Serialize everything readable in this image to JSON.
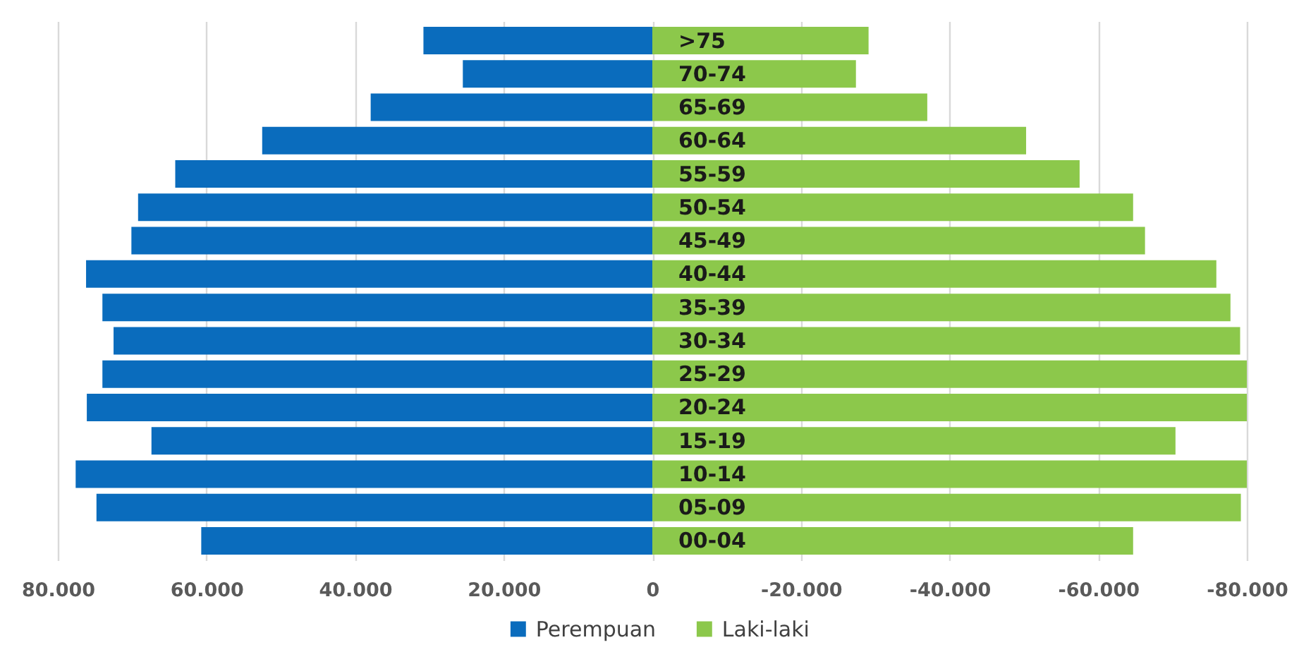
{
  "chart_data": {
    "type": "bar",
    "orientation": "horizontal",
    "stacked": true,
    "categories": [
      ">75",
      "70-74",
      "65-69",
      "60-64",
      "55-59",
      "50-54",
      "45-49",
      "40-44",
      "35-39",
      "30-34",
      "25-29",
      "20-24",
      "15-19",
      "10-14",
      "05-09",
      "00-04"
    ],
    "series": [
      {
        "name": "Perempuan",
        "color": "#0a6cbd",
        "values": [
          30800,
          25500,
          37900,
          52500,
          64200,
          69200,
          70100,
          76200,
          74000,
          72500,
          74000,
          76100,
          67400,
          77600,
          74800,
          60700
        ]
      },
      {
        "name": "Laki-laki",
        "color": "#8cc84b",
        "values": [
          -29100,
          -27400,
          -37000,
          -50300,
          -57500,
          -64700,
          -66300,
          -75900,
          -77800,
          -79100,
          -80000,
          -80000,
          -70400,
          -80000,
          -79200,
          -64700
        ]
      }
    ],
    "xlim": [
      80000,
      -80000
    ],
    "xticks": [
      {
        "value": 80000,
        "label": "80.000"
      },
      {
        "value": 60000,
        "label": "60.000"
      },
      {
        "value": 40000,
        "label": "40.000"
      },
      {
        "value": 20000,
        "label": "20.000"
      },
      0,
      {
        "value": -20000,
        "label": "-20.000"
      },
      {
        "value": -40000,
        "label": "-40.000"
      },
      {
        "value": -60000,
        "label": "-60.000"
      },
      {
        "value": -80000,
        "label": "-80.000"
      }
    ],
    "grid": "x",
    "legend": "bottom"
  }
}
